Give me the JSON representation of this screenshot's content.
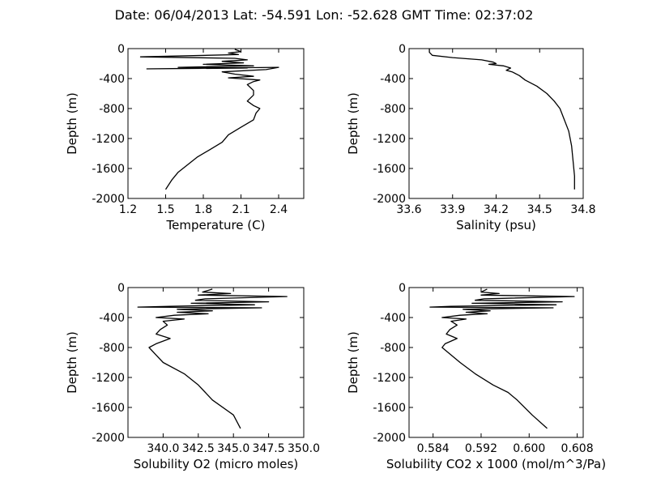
{
  "title": "Date: 06/04/2013  Lat:  -54.591 Lon:  -52.628  GMT Time: 02:37:02",
  "chart_data": [
    {
      "type": "line",
      "xlabel": "Temperature (C)",
      "ylabel": "Depth (m)",
      "xlim": [
        1.2,
        2.6
      ],
      "ylim": [
        -2000,
        0
      ],
      "xticks": [
        "1.2",
        "1.5",
        "1.8",
        "2.1",
        "2.4"
      ],
      "yticks": [
        "0",
        "-400",
        "-800",
        "-1200",
        "-1600",
        "-2000"
      ],
      "grid": false,
      "series": [
        {
          "x": [
            2.05,
            2.1,
            2.0,
            2.08,
            1.3,
            2.05,
            2.15,
            1.95,
            2.12,
            1.8,
            2.2,
            1.6,
            2.15,
            1.35,
            2.4,
            2.3,
            1.95,
            2.05,
            2.2,
            2.0,
            2.25,
            2.2,
            2.15,
            2.2,
            2.2,
            2.15,
            2.2,
            2.25,
            2.22,
            2.2,
            2.1,
            2.0,
            1.95,
            1.85,
            1.75,
            1.6,
            1.55,
            1.5
          ],
          "y": [
            -10,
            -40,
            -60,
            -80,
            -110,
            -130,
            -150,
            -170,
            -190,
            -210,
            -230,
            -250,
            -260,
            -270,
            -250,
            -280,
            -310,
            -340,
            -370,
            -390,
            -420,
            -440,
            -480,
            -560,
            -620,
            -700,
            -760,
            -800,
            -860,
            -950,
            -1050,
            -1150,
            -1250,
            -1350,
            -1450,
            -1650,
            -1750,
            -1880
          ]
        }
      ]
    },
    {
      "type": "line",
      "xlabel": "Salinity (psu)",
      "ylabel": "Depth (m)",
      "xlim": [
        33.6,
        34.8
      ],
      "ylim": [
        -2000,
        0
      ],
      "xticks": [
        "33.6",
        "33.9",
        "34.2",
        "34.5",
        "34.8"
      ],
      "yticks": [
        "0",
        "-400",
        "-800",
        "-1200",
        "-1600",
        "-2000"
      ],
      "grid": false,
      "series": [
        {
          "x": [
            33.74,
            33.74,
            33.76,
            33.9,
            34.1,
            34.18,
            34.2,
            34.15,
            34.25,
            34.3,
            34.27,
            34.31,
            34.36,
            34.4,
            34.48,
            34.55,
            34.6,
            34.64,
            34.67,
            34.7,
            34.72,
            34.73,
            34.74,
            34.74
          ],
          "y": [
            0,
            -50,
            -90,
            -120,
            -150,
            -180,
            -200,
            -210,
            -230,
            -260,
            -290,
            -310,
            -360,
            -420,
            -500,
            -600,
            -700,
            -800,
            -950,
            -1100,
            -1300,
            -1500,
            -1700,
            -1880
          ]
        }
      ]
    },
    {
      "type": "line",
      "xlabel": "Solubility O2 (micro moles)",
      "ylabel": "Depth (m)",
      "xlim": [
        337.5,
        350.0
      ],
      "ylim": [
        -2000,
        0
      ],
      "xticks": [
        "340.0",
        "342.5",
        "345.0",
        "347.5",
        "350.0"
      ],
      "yticks": [
        "0",
        "-400",
        "-800",
        "-1200",
        "-1600",
        "-2000"
      ],
      "grid": false,
      "series": [
        {
          "x": [
            343.5,
            342.8,
            344.8,
            342.5,
            348.8,
            343.0,
            342.3,
            347.5,
            342.0,
            346.5,
            340.5,
            338.2,
            347.0,
            341.0,
            343.5,
            341.0,
            343.2,
            340.8,
            339.5,
            341.5,
            340.0,
            340.3,
            339.8,
            339.5,
            340.5,
            339.5,
            339.0,
            339.5,
            340.0,
            341.5,
            342.5,
            343.0,
            343.5,
            345.0,
            345.5
          ],
          "y": [
            -20,
            -60,
            -80,
            -100,
            -120,
            -150,
            -170,
            -190,
            -210,
            -230,
            -250,
            -260,
            -270,
            -290,
            -310,
            -330,
            -350,
            -370,
            -400,
            -420,
            -450,
            -500,
            -560,
            -620,
            -680,
            -750,
            -800,
            -900,
            -1000,
            -1150,
            -1300,
            -1400,
            -1500,
            -1700,
            -1880
          ]
        }
      ]
    },
    {
      "type": "line",
      "xlabel": "Solubility CO2 x 1000 (mol/m^3/Pa)",
      "ylabel": "Depth (m)",
      "xlim": [
        0.58,
        0.609
      ],
      "ylim": [
        -2000,
        0
      ],
      "xticks": [
        "0.584",
        "0.592",
        "0.600",
        "0.608"
      ],
      "yticks": [
        "0",
        "-400",
        "-800",
        "-1200",
        "-1600",
        "-2000"
      ],
      "grid": false,
      "series": [
        {
          "x": [
            0.593,
            0.592,
            0.595,
            0.592,
            0.6075,
            0.5925,
            0.591,
            0.6055,
            0.5905,
            0.6045,
            0.587,
            0.5835,
            0.604,
            0.589,
            0.5935,
            0.5895,
            0.593,
            0.5885,
            0.5855,
            0.5895,
            0.587,
            0.588,
            0.5868,
            0.5862,
            0.588,
            0.586,
            0.5855,
            0.587,
            0.5885,
            0.591,
            0.594,
            0.5965,
            0.598,
            0.6005,
            0.603
          ],
          "y": [
            -20,
            -60,
            -80,
            -100,
            -120,
            -150,
            -170,
            -190,
            -210,
            -230,
            -250,
            -260,
            -270,
            -290,
            -310,
            -330,
            -350,
            -370,
            -400,
            -420,
            -450,
            -500,
            -560,
            -620,
            -680,
            -750,
            -800,
            -900,
            -1000,
            -1150,
            -1300,
            -1400,
            -1500,
            -1700,
            -1880
          ]
        }
      ]
    }
  ]
}
